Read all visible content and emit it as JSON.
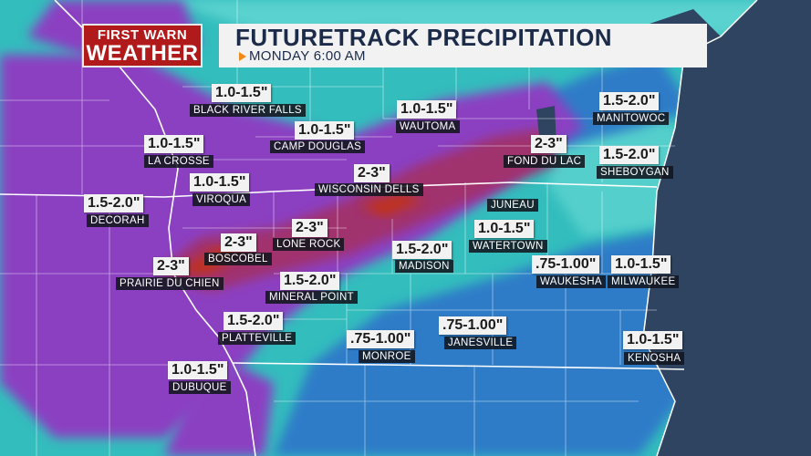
{
  "header": {
    "logo_line1": "FIRST WARN",
    "logo_line2": "WEATHER",
    "title": "FUTURETRACK PRECIPITATION",
    "subtitle": "MONDAY  6:00 AM"
  },
  "colors": {
    "logo_red": "#b01a1a",
    "title_text": "#1c2b4a",
    "arrow_orange": "#f28a1a",
    "precip_teal": "#33bdbd",
    "precip_blue": "#2f7cc8",
    "precip_purple": "#8b3fc2",
    "precip_magenta": "#a0306e",
    "precip_red": "#c0321e",
    "water": "#2e4460"
  },
  "locations": [
    {
      "city": "BLACK RIVER FALLS",
      "amount": "1.0-1.5\""
    },
    {
      "city": "CAMP DOUGLAS",
      "amount": "1.0-1.5\""
    },
    {
      "city": "LA CROSSE",
      "amount": "1.0-1.5\""
    },
    {
      "city": "VIROQUA",
      "amount": "1.0-1.5\""
    },
    {
      "city": "DECORAH",
      "amount": "1.5-2.0\""
    },
    {
      "city": "WISCONSIN DELLS",
      "amount": "2-3\""
    },
    {
      "city": "WAUTOMA",
      "amount": "1.0-1.5\""
    },
    {
      "city": "FOND DU LAC",
      "amount": "2-3\""
    },
    {
      "city": "MANITOWOC",
      "amount": "1.5-2.0\""
    },
    {
      "city": "SHEBOYGAN",
      "amount": "1.5-2.0\""
    },
    {
      "city": "JUNEAU",
      "amount": ""
    },
    {
      "city": "WATERTOWN",
      "amount": "1.0-1.5\""
    },
    {
      "city": "BOSCOBEL",
      "amount": "2-3\""
    },
    {
      "city": "LONE ROCK",
      "amount": "2-3\""
    },
    {
      "city": "MADISON",
      "amount": "1.5-2.0\""
    },
    {
      "city": "PRAIRIE DU CHIEN",
      "amount": "2-3\""
    },
    {
      "city": "MINERAL POINT",
      "amount": "1.5-2.0\""
    },
    {
      "city": "WAUKESHA",
      "amount": ".75-1.00\""
    },
    {
      "city": "MILWAUKEE",
      "amount": "1.0-1.5\""
    },
    {
      "city": "PLATTEVILLE",
      "amount": "1.5-2.0\""
    },
    {
      "city": "MONROE",
      "amount": ".75-1.00\""
    },
    {
      "city": "JANESVILLE",
      "amount": ".75-1.00\""
    },
    {
      "city": "KENOSHA",
      "amount": "1.0-1.5\""
    },
    {
      "city": "DUBUQUE",
      "amount": "1.0-1.5\""
    }
  ]
}
